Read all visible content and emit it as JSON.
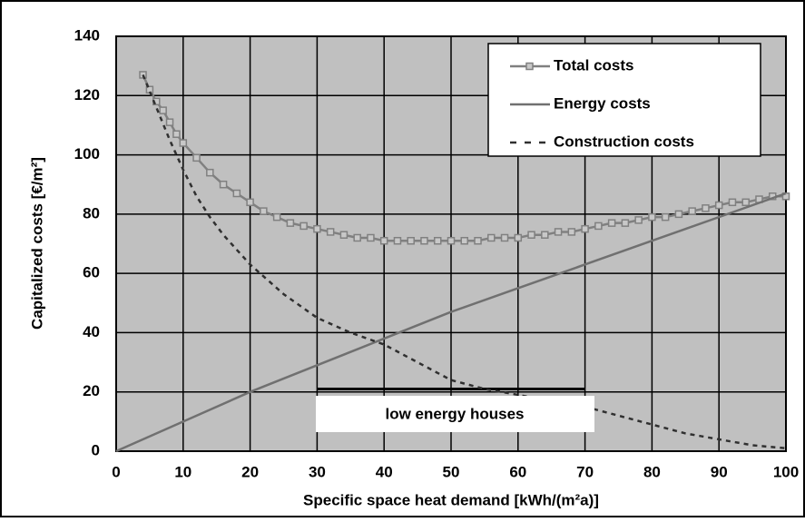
{
  "chart_data": {
    "type": "line",
    "ylabel": "Capitalized costs [€/m²]",
    "xlabel": "Specific space  heat demand [kWh/(m²a)]",
    "xlim": [
      0,
      100
    ],
    "ylim": [
      0,
      140
    ],
    "xticks": [
      0,
      10,
      20,
      30,
      40,
      50,
      60,
      70,
      80,
      90,
      100
    ],
    "yticks": [
      0,
      20,
      40,
      60,
      80,
      100,
      120,
      140
    ],
    "grid": true,
    "legend": "upper right",
    "series": [
      {
        "name": "Total costs",
        "color": "#808080",
        "marker": "square",
        "dash": false,
        "x": [
          4,
          5,
          6,
          7,
          8,
          9,
          10,
          12,
          14,
          16,
          18,
          20,
          22,
          24,
          26,
          28,
          30,
          32,
          34,
          36,
          38,
          40,
          42,
          44,
          46,
          48,
          50,
          52,
          54,
          56,
          58,
          60,
          62,
          64,
          66,
          68,
          70,
          72,
          74,
          76,
          78,
          80,
          82,
          84,
          86,
          88,
          90,
          92,
          94,
          96,
          98,
          100
        ],
        "values": [
          127,
          122,
          118,
          115,
          111,
          107,
          104,
          99,
          94,
          90,
          87,
          84,
          81,
          79,
          77,
          76,
          75,
          74,
          73,
          72,
          72,
          71,
          71,
          71,
          71,
          71,
          71,
          71,
          71,
          72,
          72,
          72,
          73,
          73,
          74,
          74,
          75,
          76,
          77,
          77,
          78,
          79,
          79,
          80,
          81,
          82,
          83,
          84,
          84,
          85,
          86,
          86
        ]
      },
      {
        "name": "Energy costs",
        "color": "#707070",
        "marker": "none",
        "dash": false,
        "x": [
          0,
          10,
          20,
          30,
          40,
          50,
          60,
          70,
          80,
          90,
          100
        ],
        "values": [
          0,
          10,
          20,
          29,
          38,
          47,
          55,
          63,
          71,
          79,
          87
        ]
      },
      {
        "name": "Construction costs",
        "color": "#303030",
        "marker": "none",
        "dash": true,
        "x": [
          4,
          6,
          8,
          10,
          12,
          14,
          16,
          18,
          20,
          25,
          30,
          35,
          40,
          45,
          50,
          55,
          60,
          65,
          70,
          75,
          80,
          85,
          90,
          95,
          100
        ],
        "values": [
          127,
          116,
          105,
          95,
          86,
          79,
          73,
          68,
          63,
          53,
          45,
          40,
          36,
          30,
          24,
          21,
          19,
          17,
          15,
          12,
          9,
          6,
          4,
          2,
          1
        ]
      }
    ],
    "annotation": {
      "text": "low energy houses",
      "x": [
        30,
        70
      ],
      "y": 21
    }
  }
}
